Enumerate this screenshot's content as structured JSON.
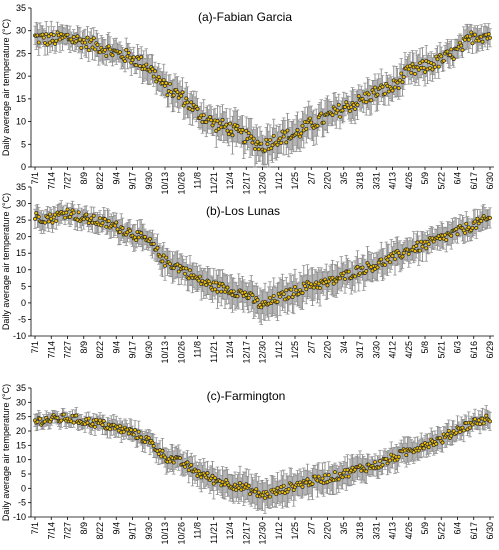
{
  "colors": {
    "marker_fill": "#f2c200",
    "marker_edge": "#2b2b2b",
    "error_bar": "#8c8c8c",
    "axis": "#000000"
  },
  "chart_data": [
    {
      "type": "scatter",
      "title": "(a)-Fabian Garcia",
      "ylabel": "Daily average air temperature (°C)",
      "xlabel": "",
      "ylim": [
        0,
        35
      ],
      "yticks": [
        0,
        5,
        10,
        15,
        20,
        25,
        30,
        35
      ],
      "grid": false,
      "x_tick_labels": [
        "7/1",
        "7/14",
        "7/27",
        "8/9",
        "8/22",
        "9/4",
        "9/17",
        "9/30",
        "10/13",
        "10/26",
        "11/8",
        "11/21",
        "12/4",
        "12/17",
        "12/30",
        "1/12",
        "1/25",
        "2/7",
        "2/20",
        "3/5",
        "3/18",
        "3/31",
        "4/13",
        "4/26",
        "5/9",
        "5/22",
        "6/4",
        "6/17",
        "6/30"
      ],
      "series": [
        {
          "x": [
            "7/1",
            "7/14",
            "7/27",
            "8/9",
            "8/22",
            "9/4",
            "9/17",
            "9/30",
            "10/13",
            "10/26",
            "11/8",
            "11/21",
            "12/4",
            "12/17",
            "12/30",
            "1/12",
            "1/25",
            "2/7",
            "2/20",
            "3/5",
            "3/18",
            "3/31",
            "4/13",
            "4/26",
            "5/9",
            "5/22",
            "6/4",
            "6/17",
            "6/30"
          ],
          "y": [
            28.5,
            28.0,
            28.5,
            27.5,
            26.5,
            25.0,
            24.0,
            22.0,
            17.5,
            15.5,
            12.0,
            9.5,
            8.5,
            6.5,
            4.5,
            6.5,
            7.0,
            9.5,
            11.0,
            13.0,
            14.5,
            16.5,
            17.5,
            21.0,
            22.0,
            23.5,
            25.5,
            29.0,
            29.0
          ],
          "error": [
            2.5,
            2.5,
            2.5,
            2.5,
            2.5,
            2.5,
            2.5,
            3.0,
            3.0,
            3.0,
            3.0,
            3.0,
            3.5,
            3.5,
            4.0,
            3.5,
            3.5,
            3.5,
            3.5,
            3.0,
            3.0,
            3.0,
            3.0,
            3.0,
            3.0,
            2.5,
            2.5,
            2.5,
            2.5
          ]
        }
      ]
    },
    {
      "type": "scatter",
      "title": "(b)-Los Lunas",
      "ylabel": "Daily average air temperature (°C)",
      "xlabel": "",
      "ylim": [
        -10,
        35
      ],
      "yticks": [
        -10,
        -5,
        0,
        5,
        10,
        15,
        20,
        25,
        30,
        35
      ],
      "grid": false,
      "x_tick_labels": [
        "7/1",
        "7/14",
        "7/27",
        "8/9",
        "8/22",
        "9/4",
        "9/17",
        "9/30",
        "10/13",
        "10/26",
        "11/8",
        "11/21",
        "12/4",
        "12/17",
        "12/30",
        "1/12",
        "1/25",
        "2/7",
        "2/20",
        "3/4",
        "3/17",
        "3/30",
        "4/12",
        "4/25",
        "5/8",
        "5/21",
        "6/3",
        "6/16",
        "6/29"
      ],
      "series": [
        {
          "x": [
            "7/1",
            "7/14",
            "7/27",
            "8/9",
            "8/22",
            "9/4",
            "9/17",
            "9/30",
            "10/13",
            "10/26",
            "11/8",
            "11/21",
            "12/4",
            "12/17",
            "12/30",
            "1/12",
            "1/25",
            "2/7",
            "2/20",
            "3/4",
            "3/17",
            "3/30",
            "4/12",
            "4/25",
            "5/8",
            "5/21",
            "6/3",
            "6/16",
            "6/29"
          ],
          "y": [
            26.0,
            25.5,
            27.5,
            25.5,
            24.5,
            23.0,
            21.0,
            18.5,
            12.5,
            10.5,
            7.0,
            5.0,
            4.0,
            2.5,
            -1.0,
            1.5,
            3.5,
            5.5,
            6.0,
            8.0,
            10.0,
            11.5,
            13.5,
            16.0,
            17.5,
            19.5,
            21.5,
            23.5,
            25.5
          ],
          "error": [
            3.0,
            3.0,
            3.0,
            3.0,
            3.0,
            3.5,
            3.5,
            3.5,
            4.0,
            4.0,
            4.0,
            4.5,
            4.5,
            4.5,
            5.0,
            5.0,
            5.0,
            5.0,
            4.5,
            4.5,
            4.5,
            4.5,
            4.0,
            4.0,
            4.0,
            3.5,
            3.5,
            3.5,
            3.0
          ]
        }
      ]
    },
    {
      "type": "scatter",
      "title": "(c)-Farmington",
      "ylabel": "Daily average air temperature (°C)",
      "xlabel": "",
      "ylim": [
        -10,
        35
      ],
      "yticks": [
        -10,
        -5,
        0,
        5,
        10,
        15,
        20,
        25,
        30,
        35
      ],
      "grid": false,
      "x_tick_labels": [
        "7/1",
        "7/14",
        "7/27",
        "8/9",
        "8/22",
        "9/4",
        "9/17",
        "9/30",
        "10/13",
        "10/26",
        "11/8",
        "11/21",
        "12/4",
        "12/17",
        "12/30",
        "1/12",
        "1/25",
        "2/7",
        "2/20",
        "3/5",
        "3/18",
        "3/31",
        "4/13",
        "4/26",
        "5/9",
        "5/22",
        "6/4",
        "6/17",
        "6/30"
      ],
      "series": [
        {
          "x": [
            "7/1",
            "7/14",
            "7/27",
            "8/9",
            "8/22",
            "9/4",
            "9/17",
            "9/30",
            "10/13",
            "10/26",
            "11/8",
            "11/21",
            "12/4",
            "12/17",
            "12/30",
            "1/12",
            "1/25",
            "2/7",
            "2/20",
            "3/5",
            "3/18",
            "3/31",
            "4/13",
            "4/26",
            "5/9",
            "5/22",
            "6/4",
            "6/17",
            "6/30"
          ],
          "y": [
            23.5,
            24.0,
            24.5,
            23.5,
            22.5,
            21.0,
            19.5,
            16.5,
            11.0,
            9.0,
            5.5,
            3.0,
            1.5,
            0.0,
            -2.5,
            -1.0,
            1.0,
            2.5,
            3.5,
            5.0,
            7.0,
            8.0,
            10.5,
            13.0,
            15.5,
            17.0,
            20.5,
            23.0,
            24.5
          ],
          "error": [
            2.5,
            2.5,
            2.5,
            2.5,
            3.0,
            3.0,
            3.0,
            3.5,
            4.0,
            4.0,
            4.5,
            4.5,
            5.0,
            5.0,
            5.0,
            5.0,
            5.0,
            5.0,
            4.5,
            4.5,
            4.5,
            4.0,
            4.0,
            4.0,
            3.5,
            3.5,
            3.5,
            3.0,
            3.0
          ]
        }
      ]
    }
  ]
}
